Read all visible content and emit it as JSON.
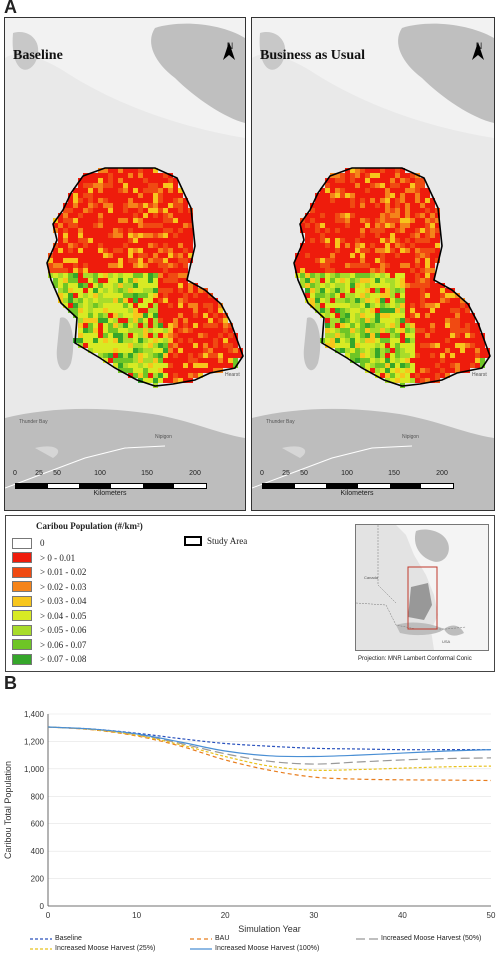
{
  "panel_a_label": "A",
  "panel_b_label": "B",
  "maps": [
    {
      "title": "Baseline",
      "north": "N"
    },
    {
      "title": "Business as Usual",
      "north": "N"
    }
  ],
  "places": {
    "thunder_bay": "Thunder Bay",
    "nipigon": "Nipigon",
    "hearst": "Hearst"
  },
  "scale": {
    "ticks": [
      "0",
      "25",
      "50",
      "100",
      "150",
      "200"
    ],
    "unit": "Kilometers"
  },
  "legend": {
    "title": "Caribou Population (#/km²)",
    "items": [
      {
        "label": "0",
        "color": "#ffffff"
      },
      {
        "label": "> 0 - 0.01",
        "color": "#ee1c0c"
      },
      {
        "label": "> 0.01 - 0.02",
        "color": "#f04a12"
      },
      {
        "label": "> 0.02 - 0.03",
        "color": "#f5841a"
      },
      {
        "label": "> 0.03 - 0.04",
        "color": "#f7c61c"
      },
      {
        "label": "> 0.04 - 0.05",
        "color": "#d8ea24"
      },
      {
        "label": "> 0.05 - 0.06",
        "color": "#a8dc2a"
      },
      {
        "label": "> 0.06 - 0.07",
        "color": "#6ec526"
      },
      {
        "label": "> 0.07 - 0.08",
        "color": "#35a62a"
      }
    ],
    "study_area": "Study Area",
    "inset_labels": {
      "canada": "Canada",
      "usa": "USA"
    },
    "projection": "Projection: MNR Lambert Conformal Conic"
  },
  "chart_data": {
    "type": "line",
    "xlabel": "Simulation Year",
    "ylabel": "Caribou Total Population",
    "xlim": [
      0,
      50
    ],
    "ylim": [
      0,
      1400
    ],
    "xticks": [
      0,
      10,
      20,
      30,
      40,
      50
    ],
    "yticks": [
      0,
      200,
      400,
      600,
      800,
      1000,
      1200,
      1400
    ],
    "ytick_labels": [
      "0",
      "200",
      "400",
      "600",
      "800",
      "1,000",
      "1,200",
      "1,400"
    ],
    "legend_placement": "bottom",
    "series": [
      {
        "name": "Baseline",
        "color": "#2a52be",
        "dash": "3,2",
        "x": [
          0,
          5,
          10,
          15,
          20,
          25,
          30,
          35,
          40,
          45,
          50
        ],
        "y": [
          1305,
          1290,
          1260,
          1220,
          1185,
          1165,
          1150,
          1145,
          1140,
          1140,
          1140
        ]
      },
      {
        "name": "BAU",
        "color": "#e87d1e",
        "dash": "4,3",
        "x": [
          0,
          5,
          10,
          15,
          20,
          25,
          30,
          35,
          40,
          45,
          50
        ],
        "y": [
          1305,
          1285,
          1240,
          1165,
          1065,
          990,
          940,
          925,
          920,
          918,
          915
        ]
      },
      {
        "name": "Increased Moose Harvest (50%)",
        "color": "#999999",
        "dash": "9,4",
        "x": [
          0,
          5,
          10,
          15,
          20,
          25,
          30,
          35,
          40,
          45,
          50
        ],
        "y": [
          1305,
          1288,
          1250,
          1185,
          1110,
          1055,
          1035,
          1050,
          1065,
          1075,
          1080
        ]
      },
      {
        "name": "Increased Moose Harvest (25%)",
        "color": "#e8c21e",
        "dash": "3,2",
        "x": [
          0,
          5,
          10,
          15,
          20,
          25,
          30,
          35,
          40,
          45,
          50
        ],
        "y": [
          1305,
          1287,
          1245,
          1175,
          1090,
          1020,
          990,
          995,
          1005,
          1015,
          1020
        ]
      },
      {
        "name": "Increased Moose Harvest (100%)",
        "color": "#4a8fd4",
        "dash": "",
        "x": [
          0,
          5,
          10,
          15,
          20,
          25,
          30,
          35,
          40,
          45,
          50
        ],
        "y": [
          1305,
          1290,
          1255,
          1195,
          1130,
          1095,
          1090,
          1100,
          1115,
          1130,
          1140
        ]
      }
    ]
  }
}
